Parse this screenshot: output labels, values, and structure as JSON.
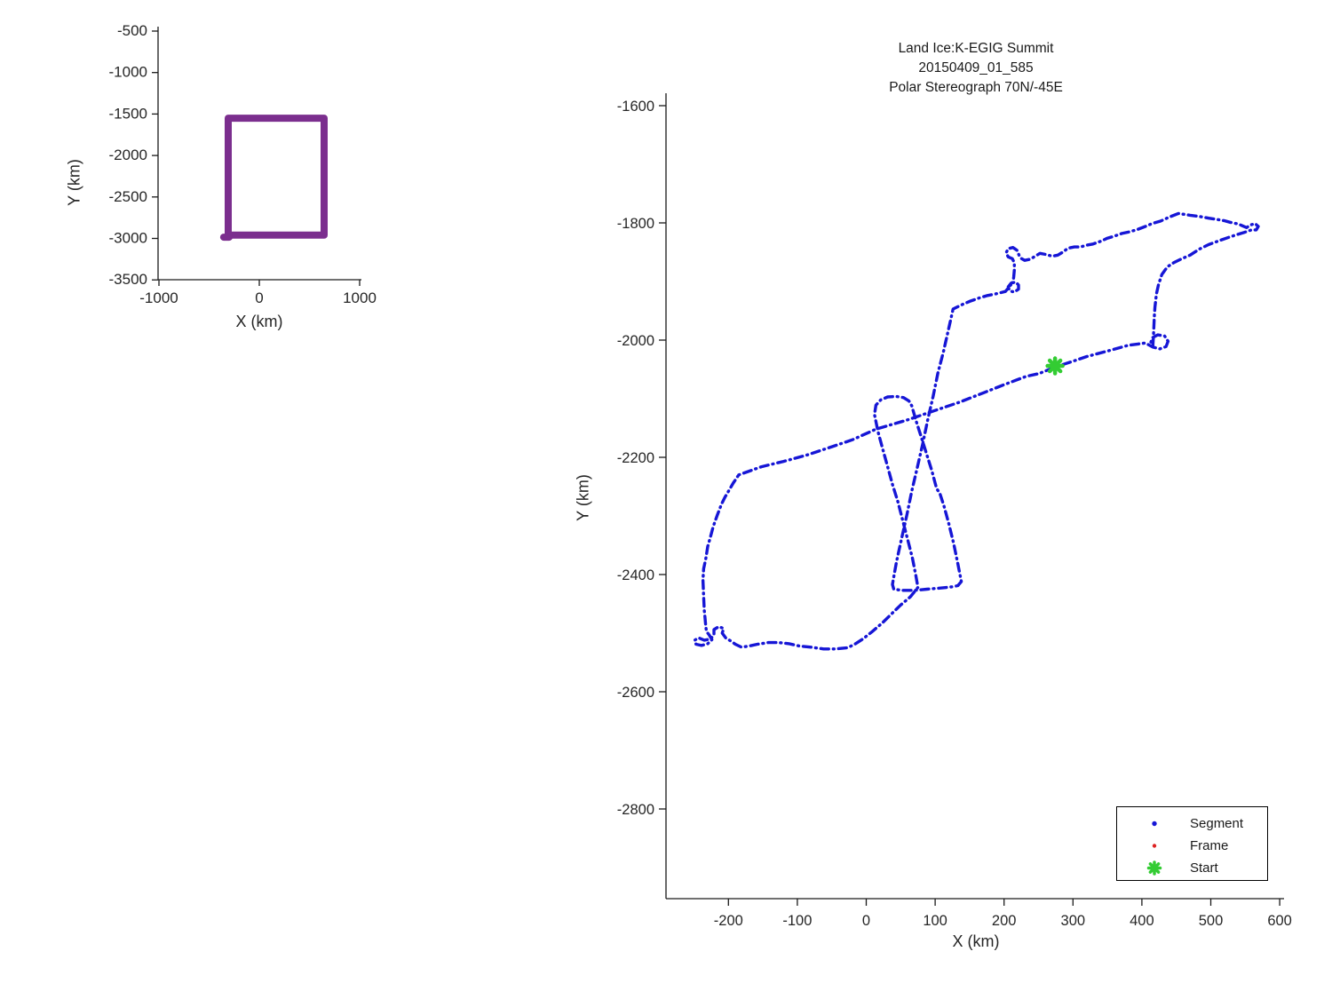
{
  "figure": {
    "background": "#ffffff",
    "text_color": "#262626",
    "spine_color": "#1a1a1a"
  },
  "chart_data": [
    {
      "id": "overview",
      "type": "line",
      "title": "",
      "xlabel": "X (km)",
      "ylabel": "Y (km)",
      "xticks": [
        -1000,
        0,
        1000
      ],
      "yticks": [
        -500,
        -1000,
        -1500,
        -2000,
        -2500,
        -3000,
        -3500
      ],
      "xlim": [
        -1010,
        1020
      ],
      "ylim": [
        -3480,
        -445
      ],
      "grid": false,
      "series": [
        {
          "name": "coverage-outline",
          "color": "#7B2E8E",
          "width": 8,
          "dash": null,
          "lines": [
            [
              [
                -310,
                -1550
              ],
              [
                646,
                -1550
              ],
              [
                646,
                -2960
              ],
              [
                -310,
                -2960
              ],
              [
                -310,
                -1550
              ]
            ],
            [
              [
                -300,
                -2985
              ],
              [
                -355,
                -2985
              ]
            ]
          ]
        }
      ]
    },
    {
      "id": "trajectory",
      "type": "line",
      "title_lines": [
        "Land Ice:K-EGIG Summit",
        "20150409_01_585",
        "Polar Stereograph 70N/-45E"
      ],
      "xlabel": "X (km)",
      "ylabel": "Y (km)",
      "xticks": [
        -200,
        -100,
        0,
        100,
        200,
        300,
        400,
        500,
        600
      ],
      "yticks": [
        -1600,
        -1800,
        -2000,
        -2200,
        -2400,
        -2600,
        -2800
      ],
      "xlim": [
        -291,
        609
      ],
      "ylim": [
        -2960,
        -1579
      ],
      "grid": false,
      "series": [
        {
          "name": "Segment",
          "color": "#1616D6",
          "width": 3.4,
          "dash": [
            1,
            5,
            9,
            5
          ],
          "lines": [
            [
              [
                -185,
                -2230
              ],
              [
                -152,
                -2216
              ],
              [
                -120,
                -2207
              ],
              [
                -86,
                -2196
              ],
              [
                -50,
                -2182
              ],
              [
                -20,
                -2170
              ],
              [
                14,
                -2152
              ],
              [
                60,
                -2136
              ],
              [
                100,
                -2120
              ],
              [
                135,
                -2106
              ],
              [
                170,
                -2090
              ],
              [
                200,
                -2076
              ],
              [
                232,
                -2062
              ],
              [
                251,
                -2057
              ],
              [
                274,
                -2046
              ],
              [
                300,
                -2036
              ],
              [
                320,
                -2028
              ],
              [
                352,
                -2018
              ],
              [
                380,
                -2009
              ],
              [
                405,
                -2005
              ],
              [
                416,
                -2012
              ],
              [
                426,
                -2015
              ],
              [
                435,
                -2011
              ],
              [
                438,
                -2002
              ],
              [
                433,
                -1993
              ],
              [
                423,
                -1991
              ],
              [
                415,
                -1996
              ],
              [
                413,
                -2004
              ],
              [
                416,
                -2010
              ],
              [
                417,
                -1988
              ],
              [
                418,
                -1960
              ],
              [
                419,
                -1944
              ],
              [
                421,
                -1922
              ],
              [
                424,
                -1906
              ],
              [
                429,
                -1888
              ],
              [
                437,
                -1875
              ],
              [
                446,
                -1868
              ],
              [
                458,
                -1861
              ],
              [
                470,
                -1855
              ],
              [
                483,
                -1845
              ],
              [
                497,
                -1837
              ],
              [
                513,
                -1830
              ],
              [
                530,
                -1823
              ],
              [
                549,
                -1816
              ],
              [
                559,
                -1812
              ],
              [
                566,
                -1812
              ],
              [
                569,
                -1806
              ],
              [
                564,
                -1801
              ],
              [
                557,
                -1804
              ],
              [
                552,
                -1808
              ],
              [
                540,
                -1802
              ],
              [
                528,
                -1799
              ],
              [
                519,
                -1796
              ],
              [
                508,
                -1794
              ],
              [
                497,
                -1792
              ],
              [
                483,
                -1789
              ],
              [
                470,
                -1787
              ],
              [
                453,
                -1784
              ],
              [
                440,
                -1790
              ],
              [
                427,
                -1797
              ],
              [
                415,
                -1801
              ],
              [
                405,
                -1806
              ],
              [
                394,
                -1811
              ],
              [
                383,
                -1815
              ],
              [
                371,
                -1818
              ],
              [
                359,
                -1823
              ],
              [
                350,
                -1826
              ],
              [
                341,
                -1831
              ],
              [
                329,
                -1836
              ],
              [
                320,
                -1838
              ],
              [
                311,
                -1841
              ],
              [
                302,
                -1841
              ],
              [
                293,
                -1843
              ],
              [
                285,
                -1850
              ],
              [
                278,
                -1855
              ],
              [
                270,
                -1857
              ],
              [
                261,
                -1854
              ],
              [
                252,
                -1852
              ],
              [
                245,
                -1857
              ],
              [
                238,
                -1862
              ],
              [
                230,
                -1864
              ],
              [
                224,
                -1860
              ],
              [
                222,
                -1856
              ],
              [
                219,
                -1847
              ],
              [
                213,
                -1842
              ],
              [
                206,
                -1844
              ],
              [
                203,
                -1851
              ],
              [
                206,
                -1858
              ],
              [
                212,
                -1861
              ],
              [
                215,
                -1868
              ],
              [
                215,
                -1880
              ],
              [
                214,
                -1892
              ],
              [
                213,
                -1902
              ],
              [
                217,
                -1901
              ],
              [
                221,
                -1906
              ],
              [
                221,
                -1913
              ],
              [
                215,
                -1918
              ],
              [
                208,
                -1916
              ],
              [
                206,
                -1909
              ],
              [
                210,
                -1903
              ],
              [
                213,
                -1901
              ],
              [
                202,
                -1917
              ],
              [
                188,
                -1921
              ],
              [
                176,
                -1924
              ],
              [
                164,
                -1928
              ],
              [
                150,
                -1934
              ],
              [
                138,
                -1940
              ],
              [
                126,
                -1947
              ],
              [
                119,
                -1984
              ],
              [
                112,
                -2020
              ],
              [
                104,
                -2056
              ],
              [
                97,
                -2096
              ],
              [
                89,
                -2137
              ],
              [
                82,
                -2177
              ],
              [
                74,
                -2218
              ],
              [
                66,
                -2258
              ],
              [
                59,
                -2298
              ],
              [
                51,
                -2340
              ],
              [
                44,
                -2378
              ],
              [
                40,
                -2404
              ],
              [
                38,
                -2417
              ],
              [
                40,
                -2425
              ],
              [
                52,
                -2427
              ],
              [
                70,
                -2427
              ],
              [
                88,
                -2425
              ],
              [
                108,
                -2423
              ],
              [
                124,
                -2421
              ],
              [
                133,
                -2419
              ],
              [
                138,
                -2412
              ],
              [
                133,
                -2382
              ],
              [
                127,
                -2348
              ],
              [
                120,
                -2314
              ],
              [
                113,
                -2284
              ],
              [
                107,
                -2262
              ],
              [
                102,
                -2253
              ],
              [
                95,
                -2222
              ],
              [
                88,
                -2196
              ],
              [
                80,
                -2166
              ],
              [
                73,
                -2140
              ],
              [
                66,
                -2112
              ],
              [
                62,
                -2104
              ],
              [
                54,
                -2098
              ],
              [
                43,
                -2096
              ],
              [
                31,
                -2097
              ],
              [
                21,
                -2102
              ],
              [
                14,
                -2111
              ],
              [
                12,
                -2127
              ],
              [
                17,
                -2156
              ],
              [
                24,
                -2186
              ],
              [
                31,
                -2216
              ],
              [
                38,
                -2246
              ],
              [
                46,
                -2276
              ],
              [
                53,
                -2308
              ],
              [
                60,
                -2340
              ],
              [
                67,
                -2372
              ],
              [
                72,
                -2402
              ],
              [
                75,
                -2422
              ],
              [
                64,
                -2438
              ],
              [
                50,
                -2452
              ],
              [
                36,
                -2468
              ],
              [
                23,
                -2483
              ],
              [
                8,
                -2498
              ],
              [
                -5,
                -2510
              ],
              [
                -18,
                -2520
              ],
              [
                -28,
                -2525
              ],
              [
                -45,
                -2527
              ],
              [
                -62,
                -2527
              ],
              [
                -80,
                -2524
              ],
              [
                -97,
                -2522
              ],
              [
                -112,
                -2518
              ],
              [
                -127,
                -2516
              ],
              [
                -142,
                -2516
              ],
              [
                -158,
                -2519
              ],
              [
                -170,
                -2522
              ],
              [
                -181,
                -2524
              ],
              [
                -190,
                -2519
              ],
              [
                -196,
                -2514
              ],
              [
                -204,
                -2508
              ],
              [
                -209,
                -2500
              ],
              [
                -207,
                -2492
              ],
              [
                -214,
                -2489
              ],
              [
                -221,
                -2494
              ],
              [
                -221,
                -2503
              ],
              [
                -226,
                -2510
              ],
              [
                -235,
                -2512
              ],
              [
                -243,
                -2508
              ],
              [
                -249,
                -2512
              ],
              [
                -247,
                -2519
              ],
              [
                -239,
                -2521
              ],
              [
                -230,
                -2518
              ],
              [
                -224,
                -2511
              ],
              [
                -228,
                -2503
              ],
              [
                -232,
                -2497
              ],
              [
                -233,
                -2487
              ],
              [
                -234,
                -2473
              ],
              [
                -235,
                -2461
              ],
              [
                -236,
                -2438
              ],
              [
                -237,
                -2409
              ],
              [
                -236,
                -2390
              ],
              [
                -233,
                -2374
              ],
              [
                -230,
                -2352
              ],
              [
                -227,
                -2340
              ],
              [
                -222,
                -2318
              ],
              [
                -216,
                -2298
              ],
              [
                -210,
                -2280
              ],
              [
                -205,
                -2268
              ],
              [
                -200,
                -2258
              ],
              [
                -193,
                -2244
              ],
              [
                -185,
                -2230
              ]
            ]
          ]
        },
        {
          "name": "Frame",
          "color": "#DD2222",
          "width": 3,
          "dash": null,
          "lines": []
        }
      ],
      "start_marker": {
        "x": 274,
        "y": -2044,
        "color": "#33CC33"
      },
      "legend": {
        "entries": [
          {
            "label": "Segment",
            "marker": "dot",
            "color": "#1616D6"
          },
          {
            "label": "Frame",
            "marker": "dot",
            "color": "#DD2222"
          },
          {
            "label": "Start",
            "marker": "asterisk",
            "color": "#33CC33"
          }
        ]
      }
    }
  ]
}
